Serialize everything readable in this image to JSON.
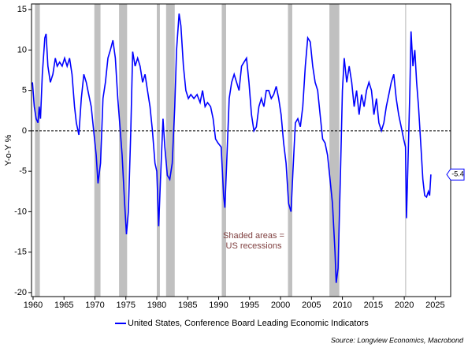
{
  "chart_data": {
    "type": "line",
    "y_label": "Y-o-Y %",
    "annotation": [
      "Shaded areas =",
      "US recessions"
    ],
    "source": "Source: Longview Economics, Macrobond",
    "xlim": [
      1959.75,
      2027.5
    ],
    "ylim": [
      -20.5,
      15.7
    ],
    "xticks": [
      1960,
      1965,
      1970,
      1975,
      1980,
      1985,
      1990,
      1995,
      2000,
      2005,
      2010,
      2015,
      2020,
      2025
    ],
    "yticks": [
      15,
      10,
      5,
      0,
      -5,
      -10,
      -15,
      -20
    ],
    "recessions": [
      [
        1960.3,
        1961.1
      ],
      [
        1969.9,
        1970.9
      ],
      [
        1973.9,
        1975.2
      ],
      [
        1980.0,
        1980.5
      ],
      [
        1981.5,
        1982.9
      ],
      [
        1990.5,
        1991.2
      ],
      [
        2001.2,
        2001.9
      ],
      [
        2007.9,
        2009.5
      ],
      [
        2020.15,
        2020.3
      ]
    ],
    "recession_color": "#c0c0c0",
    "zero_line": 0,
    "series": [
      {
        "name": "United States, Conference Board Leading Economic Indicators",
        "color": "#0000ff",
        "x": [
          1959.9,
          1960.2,
          1960.5,
          1960.8,
          1961.0,
          1961.2,
          1961.5,
          1961.9,
          1962.1,
          1962.4,
          1962.8,
          1963.2,
          1963.6,
          1963.9,
          1964.3,
          1964.7,
          1965.1,
          1965.5,
          1965.9,
          1966.3,
          1966.7,
          1967.0,
          1967.4,
          1967.8,
          1968.2,
          1968.6,
          1969.0,
          1969.4,
          1969.8,
          1970.2,
          1970.5,
          1970.9,
          1971.3,
          1971.7,
          1972.1,
          1972.5,
          1972.9,
          1973.3,
          1973.7,
          1974.0,
          1974.4,
          1974.8,
          1975.1,
          1975.4,
          1975.8,
          1976.1,
          1976.5,
          1976.9,
          1977.3,
          1977.7,
          1978.1,
          1978.5,
          1978.9,
          1979.3,
          1979.7,
          1980.0,
          1980.3,
          1980.6,
          1981.0,
          1981.3,
          1981.7,
          1982.1,
          1982.5,
          1982.9,
          1983.2,
          1983.6,
          1983.9,
          1984.3,
          1984.7,
          1985.1,
          1985.5,
          1986.0,
          1986.5,
          1987.0,
          1987.4,
          1987.8,
          1988.2,
          1988.7,
          1989.1,
          1989.5,
          1989.9,
          1990.4,
          1990.8,
          1991.0,
          1991.3,
          1991.7,
          1992.1,
          1992.5,
          1992.9,
          1993.3,
          1993.7,
          1994.1,
          1994.5,
          1994.9,
          1995.3,
          1995.7,
          1996.1,
          1996.5,
          1996.9,
          1997.3,
          1997.7,
          1998.1,
          1998.5,
          1998.9,
          1999.3,
          1999.7,
          2000.1,
          2000.5,
          2000.9,
          2001.3,
          2001.7,
          2002.0,
          2002.4,
          2002.8,
          2003.2,
          2003.6,
          2004.0,
          2004.4,
          2004.8,
          2005.2,
          2005.6,
          2006.0,
          2006.4,
          2006.8,
          2007.2,
          2007.6,
          2008.0,
          2008.4,
          2008.8,
          2009.0,
          2009.3,
          2009.7,
          2010.0,
          2010.3,
          2010.7,
          2011.1,
          2011.5,
          2011.9,
          2012.3,
          2012.7,
          2013.1,
          2013.5,
          2013.9,
          2014.3,
          2014.7,
          2015.1,
          2015.5,
          2015.9,
          2016.3,
          2016.7,
          2017.1,
          2017.5,
          2017.9,
          2018.3,
          2018.7,
          2019.1,
          2019.5,
          2019.9,
          2020.2,
          2020.35,
          2020.6,
          2020.9,
          2021.1,
          2021.4,
          2021.7,
          2022.0,
          2022.3,
          2022.7,
          2023.0,
          2023.3,
          2023.6,
          2023.9,
          2024.1,
          2024.3
        ],
        "y": [
          6,
          3,
          1.5,
          1,
          3,
          1.5,
          7,
          11.5,
          12,
          8,
          6,
          7,
          9,
          8,
          8.5,
          8,
          9,
          8,
          9,
          7,
          3,
          1,
          -0.5,
          4,
          7,
          6,
          4.5,
          3,
          0,
          -3,
          -6.5,
          -4,
          4,
          6,
          9,
          10,
          11.2,
          9,
          4,
          1,
          -3,
          -9,
          -12.8,
          -10,
          0,
          9.8,
          8,
          9,
          8,
          6,
          7,
          5,
          3,
          0,
          -4,
          -5,
          -11.8,
          -6,
          1.5,
          -2,
          -5.5,
          -6,
          -4,
          3,
          10,
          14.5,
          13,
          8,
          5,
          4,
          4.5,
          4,
          4.5,
          3.5,
          5,
          3,
          3.5,
          3,
          1.5,
          -1,
          -1.5,
          -2,
          -8,
          -9.5,
          -4,
          4,
          6,
          7,
          6,
          5,
          8,
          8.5,
          9,
          6,
          2,
          0,
          0.5,
          3,
          4,
          3,
          5,
          5,
          4,
          4.5,
          5.5,
          4,
          2,
          -1.5,
          -4,
          -9,
          -10,
          -5,
          1,
          1.5,
          0.5,
          3,
          8,
          11.5,
          11,
          8,
          6,
          5,
          2,
          -1,
          -1.5,
          -3,
          -6,
          -9,
          -15,
          -18.8,
          -17,
          -5,
          5,
          9,
          6,
          8,
          6,
          3,
          5,
          2,
          4.5,
          3,
          5,
          6,
          5,
          2,
          4,
          1,
          0,
          1,
          3,
          4.5,
          6,
          7,
          4,
          2,
          0.5,
          -1,
          -2,
          -10.8,
          -4,
          5,
          12.3,
          8,
          10,
          6,
          3,
          -2,
          -6,
          -8,
          -8.2,
          -7.5,
          -8,
          -5.4
        ]
      }
    ]
  }
}
